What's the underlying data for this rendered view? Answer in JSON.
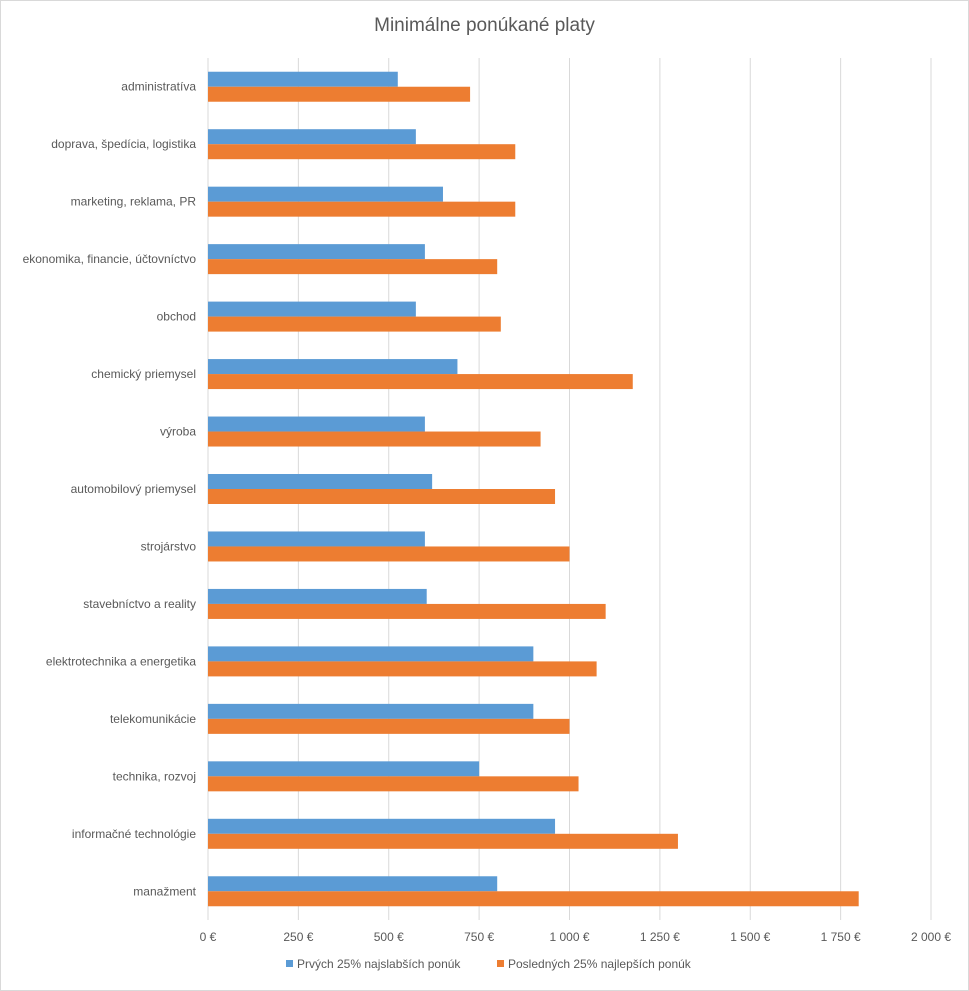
{
  "chart_data": {
    "type": "bar",
    "orientation": "horizontal",
    "title": "Minimálne ponúkané platy",
    "categories": [
      "administratíva",
      "doprava, špedícia, logistika",
      "marketing, reklama, PR",
      "ekonomika, financie, účtovníctvo",
      "obchod",
      "chemický priemysel",
      "výroba",
      "automobilový priemysel",
      "strojárstvo",
      "stavebníctvo a reality",
      "elektrotechnika a energetika",
      "telekomunikácie",
      "technika, rozvoj",
      "informačné technológie",
      "manažment"
    ],
    "series": [
      {
        "name": "Prvých 25% najslabších ponúk",
        "color": "#5b9bd5",
        "values": [
          525,
          575,
          650,
          600,
          575,
          690,
          600,
          620,
          600,
          605,
          900,
          900,
          750,
          960,
          800
        ]
      },
      {
        "name": "Posledných 25% najlepších ponúk",
        "color": "#ed7d31",
        "values": [
          725,
          850,
          850,
          800,
          810,
          1175,
          920,
          960,
          1000,
          1100,
          1075,
          1000,
          1025,
          1300,
          1800
        ]
      }
    ],
    "xlim": [
      0,
      2000
    ],
    "x_ticks": [
      0,
      250,
      500,
      750,
      1000,
      1250,
      1500,
      1750,
      2000
    ],
    "x_tick_labels": [
      "0 €",
      "250 €",
      "500 €",
      "750 €",
      "1 000 €",
      "1 250 €",
      "1 500 €",
      "1 750 €",
      "2 000 €"
    ],
    "grid": "vertical",
    "legend_position": "bottom"
  }
}
